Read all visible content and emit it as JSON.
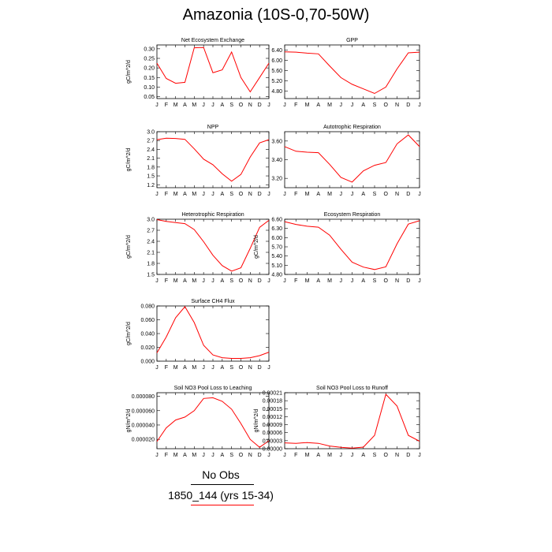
{
  "title": "Amazonia (10S-0,70-50W)",
  "legend": {
    "obs_label": "No Obs",
    "model_label": "1850_144 (yrs 15-34)",
    "obs_color": "#000000",
    "model_color": "#ff0000"
  },
  "chart_data": [
    {
      "type": "line",
      "title": "Net Ecosystem Exchange",
      "ylabel": "gC/m^2/d",
      "categories": [
        "J",
        "F",
        "M",
        "A",
        "M",
        "J",
        "J",
        "A",
        "S",
        "O",
        "N",
        "D",
        "J"
      ],
      "yticks": [
        "0.30",
        "0.25",
        "0.20",
        "0.15",
        "0.10",
        "0.05"
      ],
      "ytick_values": [
        0.3,
        0.25,
        0.2,
        0.15,
        0.1,
        0.05
      ],
      "ylim": [
        0.04,
        0.32
      ],
      "series": [
        {
          "values": [
            0.225,
            0.145,
            0.12,
            0.125,
            0.305,
            0.307,
            0.175,
            0.19,
            0.283,
            0.15,
            0.075,
            0.15,
            0.225
          ],
          "color": "#ff0000"
        }
      ]
    },
    {
      "type": "line",
      "title": "GPP",
      "ylabel": "",
      "categories": [
        "J",
        "F",
        "M",
        "A",
        "M",
        "J",
        "J",
        "A",
        "S",
        "O",
        "N",
        "D",
        "J"
      ],
      "yticks": [
        "6.40",
        "6.00",
        "5.60",
        "5.20",
        "4.80"
      ],
      "ytick_values": [
        6.4,
        6.0,
        5.6,
        5.2,
        4.8
      ],
      "ylim": [
        4.5,
        6.6
      ],
      "series": [
        {
          "values": [
            6.33,
            6.32,
            6.28,
            6.25,
            5.78,
            5.32,
            5.06,
            4.88,
            4.7,
            4.95,
            5.66,
            6.29,
            6.32
          ],
          "color": "#ff0000"
        }
      ]
    },
    {
      "type": "line",
      "title": "NPP",
      "ylabel": "gC/m^2/d",
      "categories": [
        "J",
        "F",
        "M",
        "A",
        "M",
        "J",
        "J",
        "A",
        "S",
        "O",
        "N",
        "D",
        "J"
      ],
      "yticks": [
        "3.0",
        "2.7",
        "2.4",
        "2.1",
        "1.8",
        "1.5",
        "1.2"
      ],
      "ytick_values": [
        3.0,
        2.7,
        2.4,
        2.1,
        1.8,
        1.5,
        1.2
      ],
      "ylim": [
        1.1,
        3.0
      ],
      "series": [
        {
          "values": [
            2.73,
            2.78,
            2.77,
            2.74,
            2.42,
            2.07,
            1.88,
            1.57,
            1.32,
            1.55,
            2.14,
            2.62,
            2.73
          ],
          "color": "#ff0000"
        }
      ]
    },
    {
      "type": "line",
      "title": "Autotrophic Respiration",
      "ylabel": "",
      "categories": [
        "J",
        "F",
        "M",
        "A",
        "M",
        "J",
        "J",
        "A",
        "S",
        "O",
        "N",
        "D",
        "J"
      ],
      "yticks": [
        "3.60",
        "3.40",
        "3.20"
      ],
      "ytick_values": [
        3.6,
        3.4,
        3.2
      ],
      "ylim": [
        3.1,
        3.7
      ],
      "series": [
        {
          "values": [
            3.54,
            3.49,
            3.48,
            3.475,
            3.35,
            3.21,
            3.16,
            3.28,
            3.34,
            3.37,
            3.57,
            3.665,
            3.54
          ],
          "color": "#ff0000"
        }
      ]
    },
    {
      "type": "line",
      "title": "Heterotrophic Respiration",
      "ylabel": "gC/m^2/d",
      "categories": [
        "J",
        "F",
        "M",
        "A",
        "M",
        "J",
        "J",
        "A",
        "S",
        "O",
        "N",
        "D",
        "J"
      ],
      "yticks": [
        "3.0",
        "2.7",
        "2.4",
        "2.1",
        "1.8",
        "1.5"
      ],
      "ytick_values": [
        3.0,
        2.7,
        2.4,
        2.1,
        1.8,
        1.5
      ],
      "ylim": [
        1.5,
        3.0
      ],
      "series": [
        {
          "values": [
            2.99,
            2.94,
            2.91,
            2.88,
            2.72,
            2.39,
            2.02,
            1.74,
            1.59,
            1.68,
            2.21,
            2.78,
            2.97
          ],
          "color": "#ff0000"
        }
      ]
    },
    {
      "type": "line",
      "title": "Ecosystem Respiration",
      "ylabel": "gC/m^2/d",
      "categories": [
        "J",
        "F",
        "M",
        "A",
        "M",
        "J",
        "J",
        "A",
        "S",
        "O",
        "N",
        "D",
        "J"
      ],
      "yticks": [
        "6.60",
        "6.30",
        "6.00",
        "5.70",
        "5.40",
        "5.10",
        "4.80"
      ],
      "ytick_values": [
        6.6,
        6.3,
        6.0,
        5.7,
        5.4,
        5.1,
        4.8
      ],
      "ylim": [
        4.8,
        6.6
      ],
      "series": [
        {
          "values": [
            6.52,
            6.43,
            6.37,
            6.34,
            6.08,
            5.62,
            5.2,
            5.04,
            4.96,
            5.05,
            5.8,
            6.44,
            6.55
          ],
          "color": "#ff0000"
        }
      ]
    },
    {
      "type": "line",
      "title": "Surface CH4 Flux",
      "ylabel": "gC/m^2/d",
      "categories": [
        "J",
        "F",
        "M",
        "A",
        "M",
        "J",
        "J",
        "A",
        "S",
        "O",
        "N",
        "D",
        "J"
      ],
      "yticks": [
        "0.080",
        "0.060",
        "0.040",
        "0.020",
        "0.000"
      ],
      "ytick_values": [
        0.08,
        0.06,
        0.04,
        0.02,
        0.0
      ],
      "ylim": [
        0.0,
        0.08
      ],
      "series": [
        {
          "values": [
            0.012,
            0.035,
            0.063,
            0.079,
            0.056,
            0.023,
            0.009,
            0.005,
            0.004,
            0.004,
            0.005,
            0.008,
            0.013
          ],
          "color": "#ff0000"
        }
      ]
    },
    {
      "type": "line",
      "title": "Soil NO3 Pool Loss to Leaching",
      "ylabel": "gN/m^2/d",
      "categories": [
        "J",
        "F",
        "M",
        "A",
        "M",
        "J",
        "J",
        "A",
        "S",
        "O",
        "N",
        "D",
        "J"
      ],
      "yticks": [
        "0.000080",
        "0.000060",
        "0.000040",
        "0.000020"
      ],
      "ytick_values": [
        8e-05,
        6e-05,
        4e-05,
        2e-05
      ],
      "ylim": [
        7e-06,
        8.5e-05
      ],
      "series": [
        {
          "values": [
            1.7e-05,
            3.6e-05,
            4.7e-05,
            5.1e-05,
            6e-05,
            7.7e-05,
            7.8e-05,
            7.3e-05,
            6.2e-05,
            4.2e-05,
            2e-05,
            9e-06,
            1.8e-05
          ],
          "color": "#ff0000"
        }
      ]
    },
    {
      "type": "line",
      "title": "Soil NO3 Pool Loss to Runoff",
      "ylabel": "gN/m^2/d",
      "categories": [
        "J",
        "F",
        "M",
        "A",
        "M",
        "J",
        "J",
        "A",
        "S",
        "O",
        "N",
        "D",
        "J"
      ],
      "yticks": [
        "0.00021",
        "0.00018",
        "0.00015",
        "0.00012",
        "0.00009",
        "0.00006",
        "0.00003",
        "0.00000"
      ],
      "ytick_values": [
        0.00021,
        0.00018,
        0.00015,
        0.00012,
        9e-05,
        6e-05,
        3e-05,
        0.0
      ],
      "ylim": [
        0.0,
        0.00021
      ],
      "series": [
        {
          "values": [
            2.2e-05,
            2e-05,
            2.3e-05,
            2e-05,
            1e-05,
            5e-06,
            2e-06,
            6e-06,
            5e-05,
            0.000204,
            0.00016,
            5e-05,
            2.8e-05
          ],
          "color": "#ff0000"
        }
      ]
    }
  ]
}
